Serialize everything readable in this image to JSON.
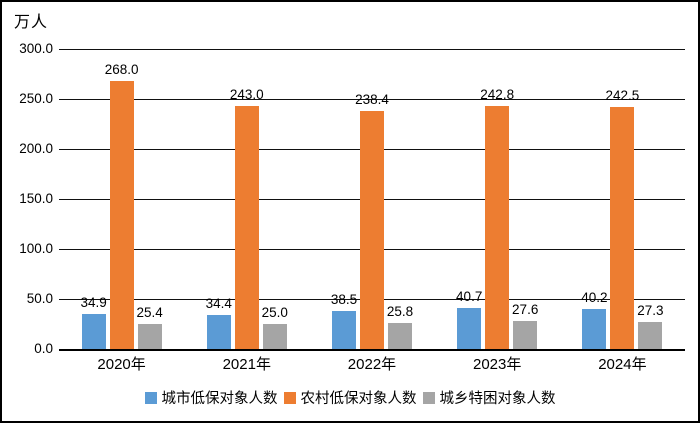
{
  "chart_data": {
    "type": "bar",
    "unit_label": "万人",
    "categories": [
      "2020年",
      "2021年",
      "2022年",
      "2023年",
      "2024年"
    ],
    "series": [
      {
        "name": "城市低保对象人数",
        "color": "#5B9BD5",
        "values": [
          34.9,
          34.4,
          38.5,
          40.7,
          40.2
        ]
      },
      {
        "name": "农村低保对象人数",
        "color": "#ED7D31",
        "values": [
          268.0,
          243.0,
          238.4,
          242.8,
          242.5
        ]
      },
      {
        "name": "城乡特困对象人数",
        "color": "#A5A5A5",
        "values": [
          25.4,
          25.0,
          25.8,
          27.6,
          27.3
        ]
      }
    ],
    "y_ticks": [
      0,
      50,
      100,
      150,
      200,
      250,
      300
    ],
    "y_tick_labels": [
      "0.0",
      "50.0",
      "100.0",
      "150.0",
      "200.0",
      "250.0",
      "300.0"
    ],
    "ylim": [
      0,
      300
    ],
    "grid": true,
    "value_label_decimals": 1,
    "legend_position": "bottom",
    "colors": {
      "gridline": "#111111",
      "axis": "#000000",
      "text": "#000000",
      "background": "#ffffff",
      "border": "#000000"
    }
  }
}
